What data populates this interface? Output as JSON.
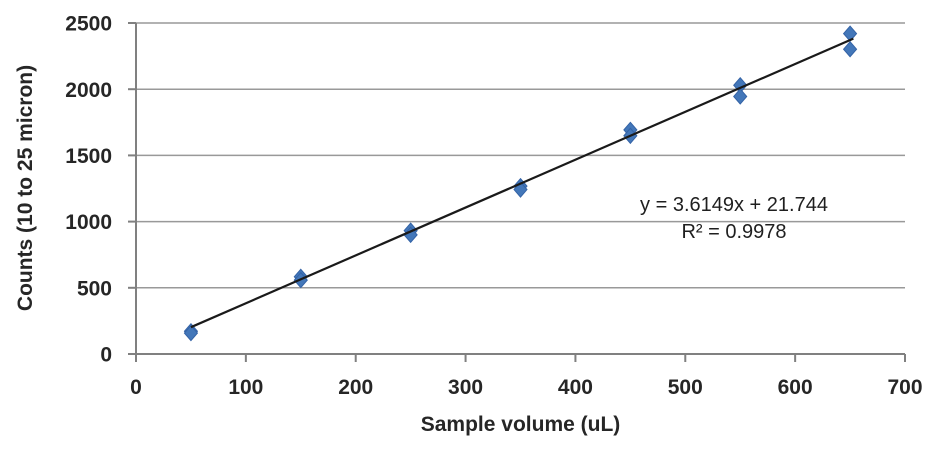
{
  "chart_data": {
    "type": "scatter",
    "title": "",
    "xlabel": "Sample volume (uL)",
    "ylabel": "Counts (10 to 25 micron)",
    "xlim": [
      0,
      700
    ],
    "ylim": [
      0,
      2500
    ],
    "x_ticks": [
      0,
      100,
      200,
      300,
      400,
      500,
      600,
      700
    ],
    "y_ticks": [
      0,
      500,
      1000,
      1500,
      2000,
      2500
    ],
    "grid": "horizontal",
    "legend": "none",
    "points": [
      [
        50,
        172
      ],
      [
        50,
        158
      ],
      [
        150,
        583
      ],
      [
        150,
        558
      ],
      [
        250,
        932
      ],
      [
        250,
        900
      ],
      [
        350,
        1268
      ],
      [
        350,
        1242
      ],
      [
        450,
        1693
      ],
      [
        450,
        1648
      ],
      [
        550,
        2030
      ],
      [
        550,
        1945
      ],
      [
        650,
        2420
      ],
      [
        650,
        2302
      ]
    ],
    "trendline": {
      "slope": 3.6149,
      "intercept": 21.744,
      "x_start": 50,
      "x_end": 653,
      "equation_label": "y = 3.6149x + 21.744",
      "r2_label": "R² = 0.9978"
    },
    "marker": {
      "shape": "diamond",
      "fill": "#4377B9",
      "border": "#3463A6"
    },
    "colors": {
      "trendline": "#1A1A1A",
      "gridline": "#999999",
      "axis": "#808080",
      "text": "#262626"
    }
  }
}
